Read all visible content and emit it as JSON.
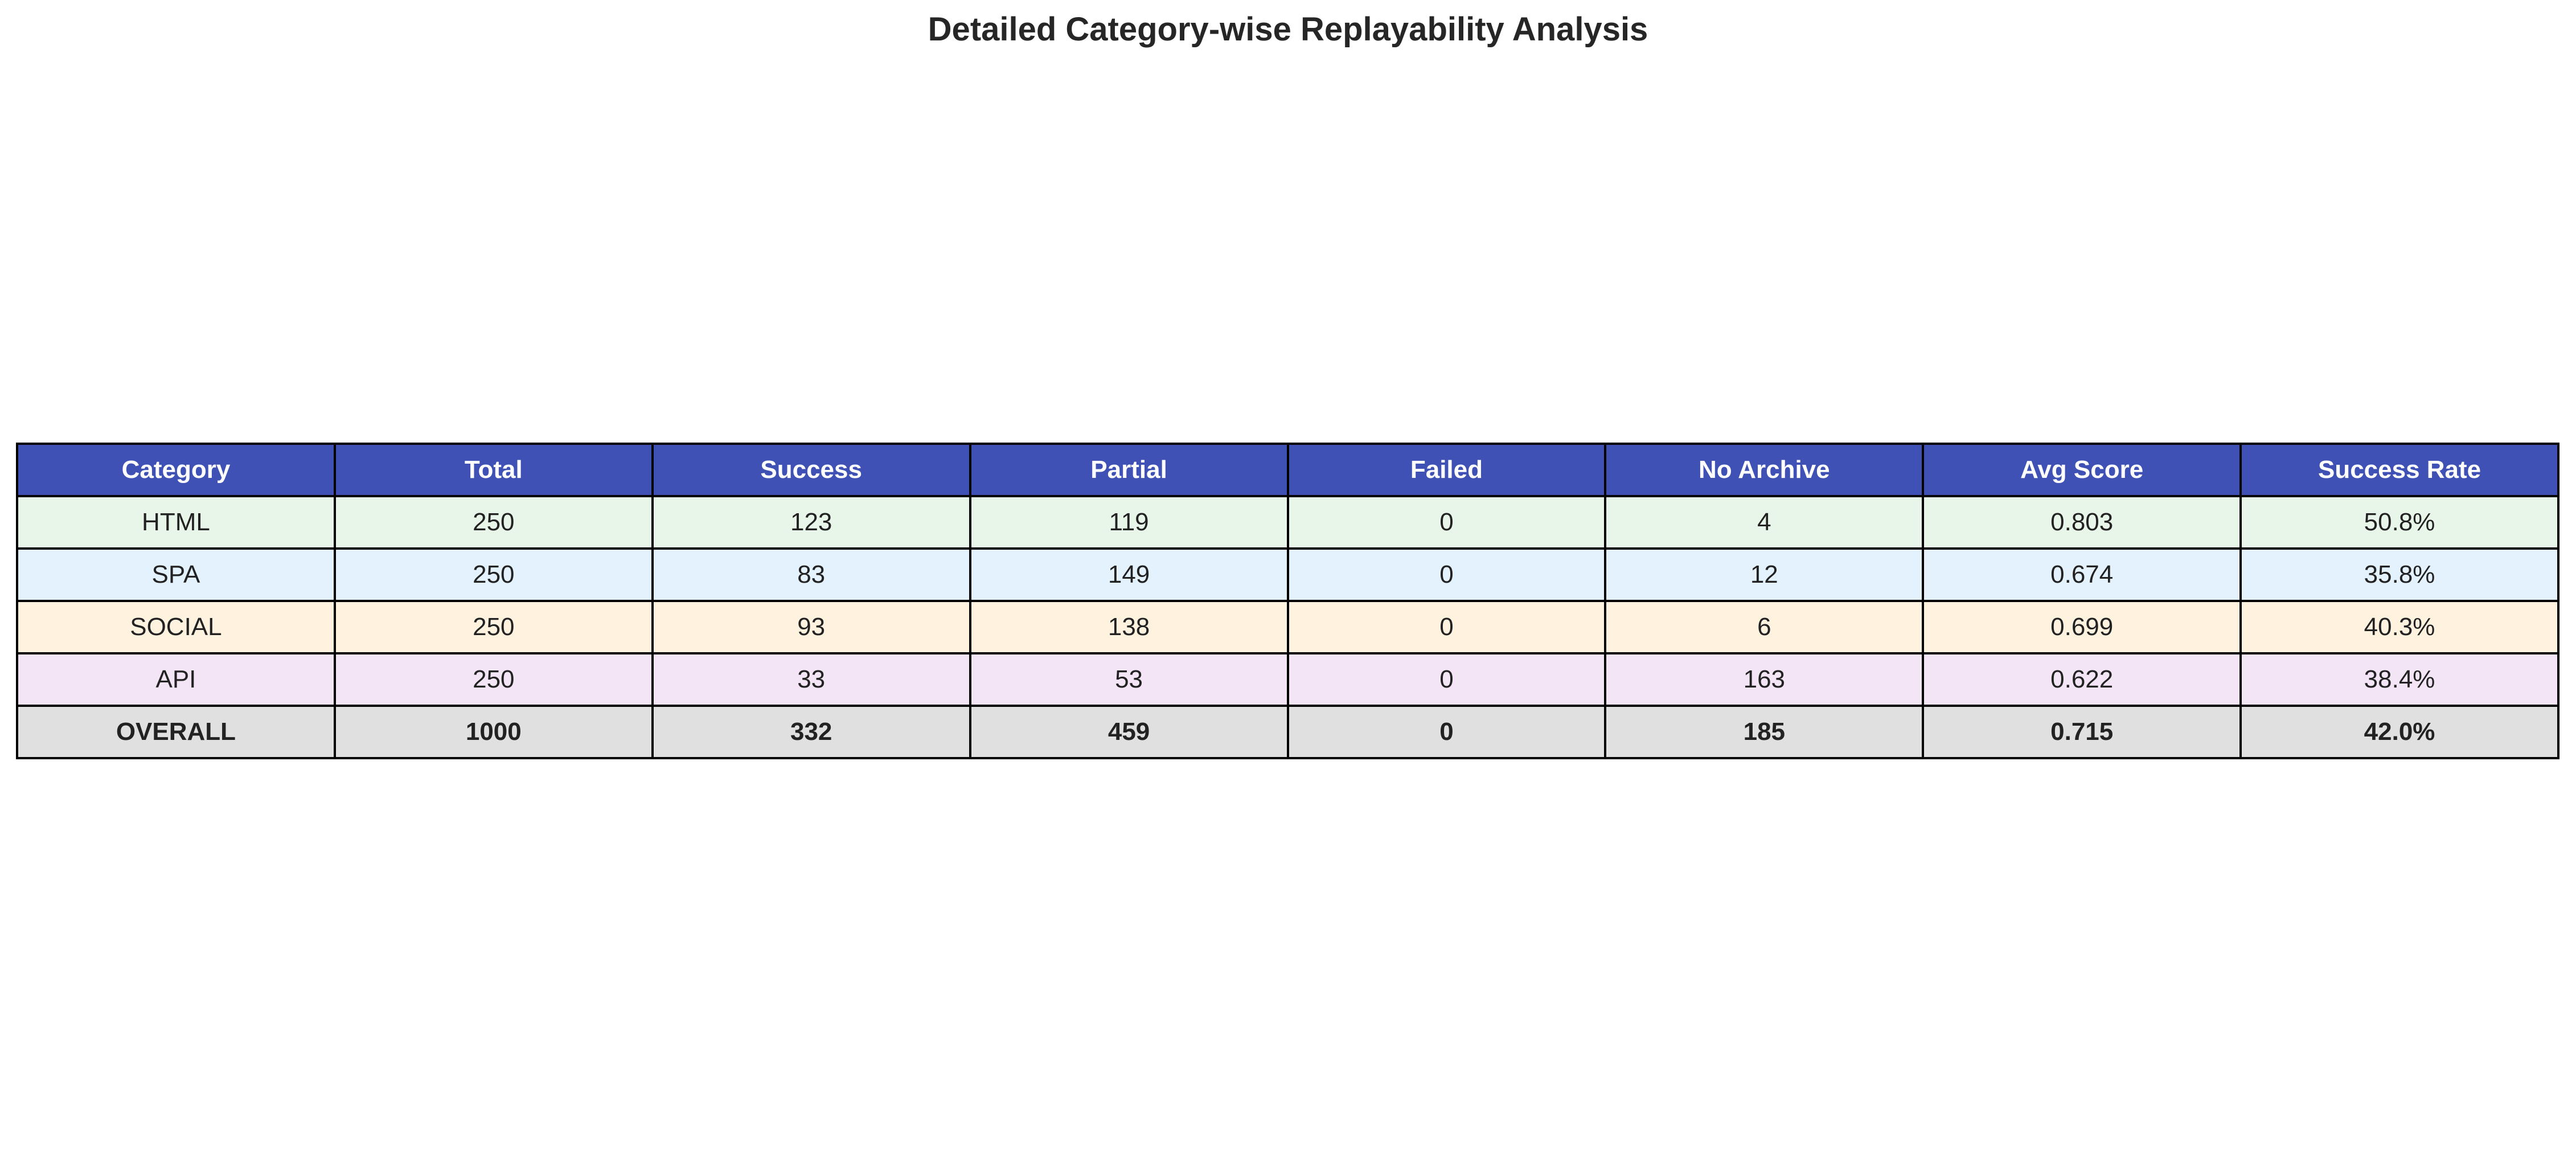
{
  "chart_data": {
    "type": "table",
    "title": "Detailed Category-wise Replayability Analysis",
    "columns": [
      "Category",
      "Total",
      "Success",
      "Partial",
      "Failed",
      "No Archive",
      "Avg Score",
      "Success Rate"
    ],
    "rows": [
      {
        "key": "html",
        "cells": [
          "HTML",
          "250",
          "123",
          "119",
          "0",
          "4",
          "0.803",
          "50.8%"
        ],
        "color": "#e8f5e9",
        "bold": false
      },
      {
        "key": "spa",
        "cells": [
          "SPA",
          "250",
          "83",
          "149",
          "0",
          "12",
          "0.674",
          "35.8%"
        ],
        "color": "#e3f2fd",
        "bold": false
      },
      {
        "key": "social",
        "cells": [
          "SOCIAL",
          "250",
          "93",
          "138",
          "0",
          "6",
          "0.699",
          "40.3%"
        ],
        "color": "#fff3e0",
        "bold": false
      },
      {
        "key": "api",
        "cells": [
          "API",
          "250",
          "33",
          "53",
          "0",
          "163",
          "0.622",
          "38.4%"
        ],
        "color": "#f3e5f5",
        "bold": false
      },
      {
        "key": "overall",
        "cells": [
          "OVERALL",
          "1000",
          "332",
          "459",
          "0",
          "185",
          "0.715",
          "42.0%"
        ],
        "color": "#e0e0e0",
        "bold": true
      }
    ],
    "header_color": "#3f51b5",
    "header_text_color": "#ffffff"
  }
}
